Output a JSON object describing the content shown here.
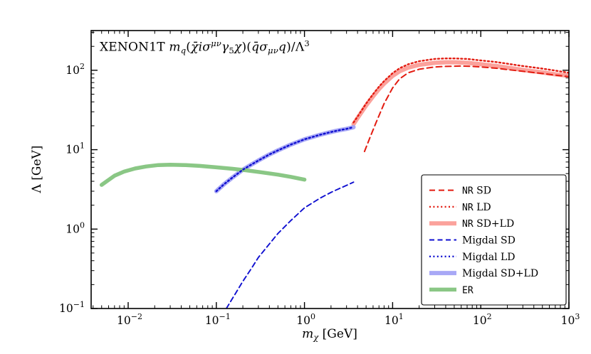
{
  "figure": {
    "background": "#ffffff",
    "frame_color": "#000000"
  },
  "chart_data": {
    "type": "line",
    "title_plain": "XENON1T m_q(χ̄iσ^{μν}γ_5χ)(q̄σ_{μν}q)/Λ^3",
    "title_segments": [
      {
        "t": "XENON1T "
      },
      {
        "t": "m",
        "i": 1
      },
      {
        "t": "q",
        "i": 1,
        "s": "sub"
      },
      {
        "t": "("
      },
      {
        "t": "χ̄",
        "i": 1
      },
      {
        "t": "i",
        "i": 1
      },
      {
        "t": "σ",
        "i": 1
      },
      {
        "t": "μν",
        "i": 1,
        "s": "sup"
      },
      {
        "t": "γ",
        "i": 1
      },
      {
        "t": "5",
        "s": "sub"
      },
      {
        "t": "χ",
        "i": 1
      },
      {
        "t": ")("
      },
      {
        "t": "q̄",
        "i": 1
      },
      {
        "t": "σ",
        "i": 1
      },
      {
        "t": "μν",
        "i": 1,
        "s": "sub"
      },
      {
        "t": "q",
        "i": 1
      },
      {
        "t": ")/Λ"
      },
      {
        "t": "3",
        "s": "sup"
      }
    ],
    "xlabel_plain": "m_χ [GeV]",
    "xlabel_segments": [
      {
        "t": "m",
        "i": 1
      },
      {
        "t": "χ",
        "i": 1,
        "s": "sub"
      },
      {
        "t": " [GeV]"
      }
    ],
    "ylabel_plain": "Λ [GeV]",
    "ylabel_segments": [
      {
        "t": "Λ"
      },
      {
        "t": " [GeV]"
      }
    ],
    "x_scale": "log",
    "y_scale": "log",
    "xlim_log": [
      -2.42,
      3
    ],
    "ylim_log": [
      -1,
      2.5
    ],
    "x_major_tick_exponents": [
      -2,
      -1,
      0,
      1,
      2,
      3
    ],
    "y_major_tick_exponents": [
      -1,
      0,
      1,
      2
    ],
    "legend": {
      "position": "lower right",
      "border_color": "#000000",
      "background": "#ffffff"
    },
    "series": [
      {
        "name": "NR SD",
        "label_tt": "NR",
        "label_rm": " SD",
        "color": "#e31b10",
        "width": 2,
        "dash": "8,5",
        "opacity": 1,
        "z": 2,
        "points": [
          [
            4.8,
            9.5
          ],
          [
            5.5,
            14
          ],
          [
            6.5,
            22
          ],
          [
            8,
            38
          ],
          [
            10,
            60
          ],
          [
            12,
            78
          ],
          [
            15,
            93
          ],
          [
            20,
            103
          ],
          [
            30,
            110
          ],
          [
            40,
            112
          ],
          [
            60,
            113
          ],
          [
            80,
            112
          ],
          [
            100,
            110
          ],
          [
            150,
            106
          ],
          [
            200,
            102
          ],
          [
            300,
            97
          ],
          [
            500,
            91
          ],
          [
            700,
            87
          ],
          [
            1000,
            83
          ]
        ]
      },
      {
        "name": "NR LD",
        "label_tt": "NR",
        "label_rm": " LD",
        "color": "#e31b10",
        "width": 2.4,
        "dash": "2,3.4",
        "opacity": 1,
        "z": 3,
        "points": [
          [
            3.6,
            22
          ],
          [
            4,
            26
          ],
          [
            5,
            38
          ],
          [
            6,
            50
          ],
          [
            7,
            62
          ],
          [
            8,
            73
          ],
          [
            10,
            92
          ],
          [
            12,
            106
          ],
          [
            15,
            119
          ],
          [
            20,
            130
          ],
          [
            30,
            139
          ],
          [
            40,
            141
          ],
          [
            50,
            141
          ],
          [
            70,
            139
          ],
          [
            100,
            133
          ],
          [
            150,
            127
          ],
          [
            200,
            121
          ],
          [
            300,
            113
          ],
          [
            500,
            105
          ],
          [
            700,
            99
          ],
          [
            1000,
            93
          ]
        ]
      },
      {
        "name": "NR SD+LD",
        "label_tt": "NR",
        "label_rm": " SD+LD",
        "color": "#fb9d97",
        "width": 6,
        "dash": "",
        "opacity": 0.95,
        "z": 1,
        "points": [
          [
            3.6,
            21
          ],
          [
            4,
            25
          ],
          [
            5,
            36
          ],
          [
            6,
            47
          ],
          [
            7,
            58
          ],
          [
            8,
            68
          ],
          [
            10,
            85
          ],
          [
            12,
            97
          ],
          [
            15,
            108
          ],
          [
            20,
            117
          ],
          [
            30,
            124
          ],
          [
            40,
            126
          ],
          [
            50,
            126
          ],
          [
            70,
            124
          ],
          [
            100,
            119
          ],
          [
            150,
            113
          ],
          [
            200,
            108
          ],
          [
            300,
            101
          ],
          [
            500,
            94
          ],
          [
            700,
            89
          ],
          [
            1000,
            85
          ]
        ]
      },
      {
        "name": "Migdal SD",
        "label_tt": "",
        "label_rm": "Migdal SD",
        "color": "#0f0fd0",
        "width": 1.9,
        "dash": "7,4.5",
        "opacity": 1,
        "z": 2,
        "points": [
          [
            0.13,
            0.1
          ],
          [
            0.15,
            0.13
          ],
          [
            0.2,
            0.22
          ],
          [
            0.25,
            0.32
          ],
          [
            0.3,
            0.44
          ],
          [
            0.4,
            0.65
          ],
          [
            0.5,
            0.88
          ],
          [
            0.7,
            1.28
          ],
          [
            1.0,
            1.85
          ],
          [
            1.5,
            2.45
          ],
          [
            2.0,
            2.9
          ],
          [
            2.5,
            3.25
          ],
          [
            3.0,
            3.55
          ],
          [
            3.6,
            3.9
          ]
        ]
      },
      {
        "name": "Migdal LD",
        "label_tt": "",
        "label_rm": "Migdal LD",
        "color": "#0f0fd0",
        "width": 2.4,
        "dash": "2,3.4",
        "opacity": 1,
        "z": 3,
        "points": [
          [
            0.1,
            3.0
          ],
          [
            0.12,
            3.6
          ],
          [
            0.15,
            4.4
          ],
          [
            0.2,
            5.6
          ],
          [
            0.25,
            6.5
          ],
          [
            0.3,
            7.3
          ],
          [
            0.4,
            8.7
          ],
          [
            0.5,
            9.8
          ],
          [
            0.7,
            11.6
          ],
          [
            1.0,
            13.5
          ],
          [
            1.5,
            15.4
          ],
          [
            2.0,
            16.7
          ],
          [
            2.5,
            17.6
          ],
          [
            3.0,
            18.3
          ],
          [
            3.6,
            19.2
          ]
        ]
      },
      {
        "name": "Migdal SD+LD",
        "label_tt": "",
        "label_rm": "Migdal SD+LD",
        "color": "#a3a3f5",
        "width": 6,
        "dash": "",
        "opacity": 0.95,
        "z": 1,
        "points": [
          [
            0.1,
            3.0
          ],
          [
            0.12,
            3.6
          ],
          [
            0.15,
            4.4
          ],
          [
            0.2,
            5.6
          ],
          [
            0.25,
            6.5
          ],
          [
            0.3,
            7.3
          ],
          [
            0.4,
            8.7
          ],
          [
            0.5,
            9.8
          ],
          [
            0.7,
            11.6
          ],
          [
            1.0,
            13.5
          ],
          [
            1.5,
            15.4
          ],
          [
            2.0,
            16.7
          ],
          [
            2.5,
            17.6
          ],
          [
            3.0,
            18.3
          ],
          [
            3.6,
            19.2
          ]
        ]
      },
      {
        "name": "ER",
        "label_tt": "ER",
        "label_rm": "",
        "color": "#84c47e",
        "width": 5.5,
        "dash": "",
        "opacity": 0.95,
        "z": 1,
        "points": [
          [
            0.005,
            3.6
          ],
          [
            0.007,
            4.7
          ],
          [
            0.009,
            5.3
          ],
          [
            0.012,
            5.8
          ],
          [
            0.016,
            6.15
          ],
          [
            0.022,
            6.4
          ],
          [
            0.03,
            6.45
          ],
          [
            0.045,
            6.4
          ],
          [
            0.065,
            6.25
          ],
          [
            0.1,
            6.0
          ],
          [
            0.15,
            5.75
          ],
          [
            0.22,
            5.5
          ],
          [
            0.32,
            5.2
          ],
          [
            0.5,
            4.85
          ],
          [
            0.7,
            4.55
          ],
          [
            1.0,
            4.2
          ]
        ]
      }
    ]
  }
}
